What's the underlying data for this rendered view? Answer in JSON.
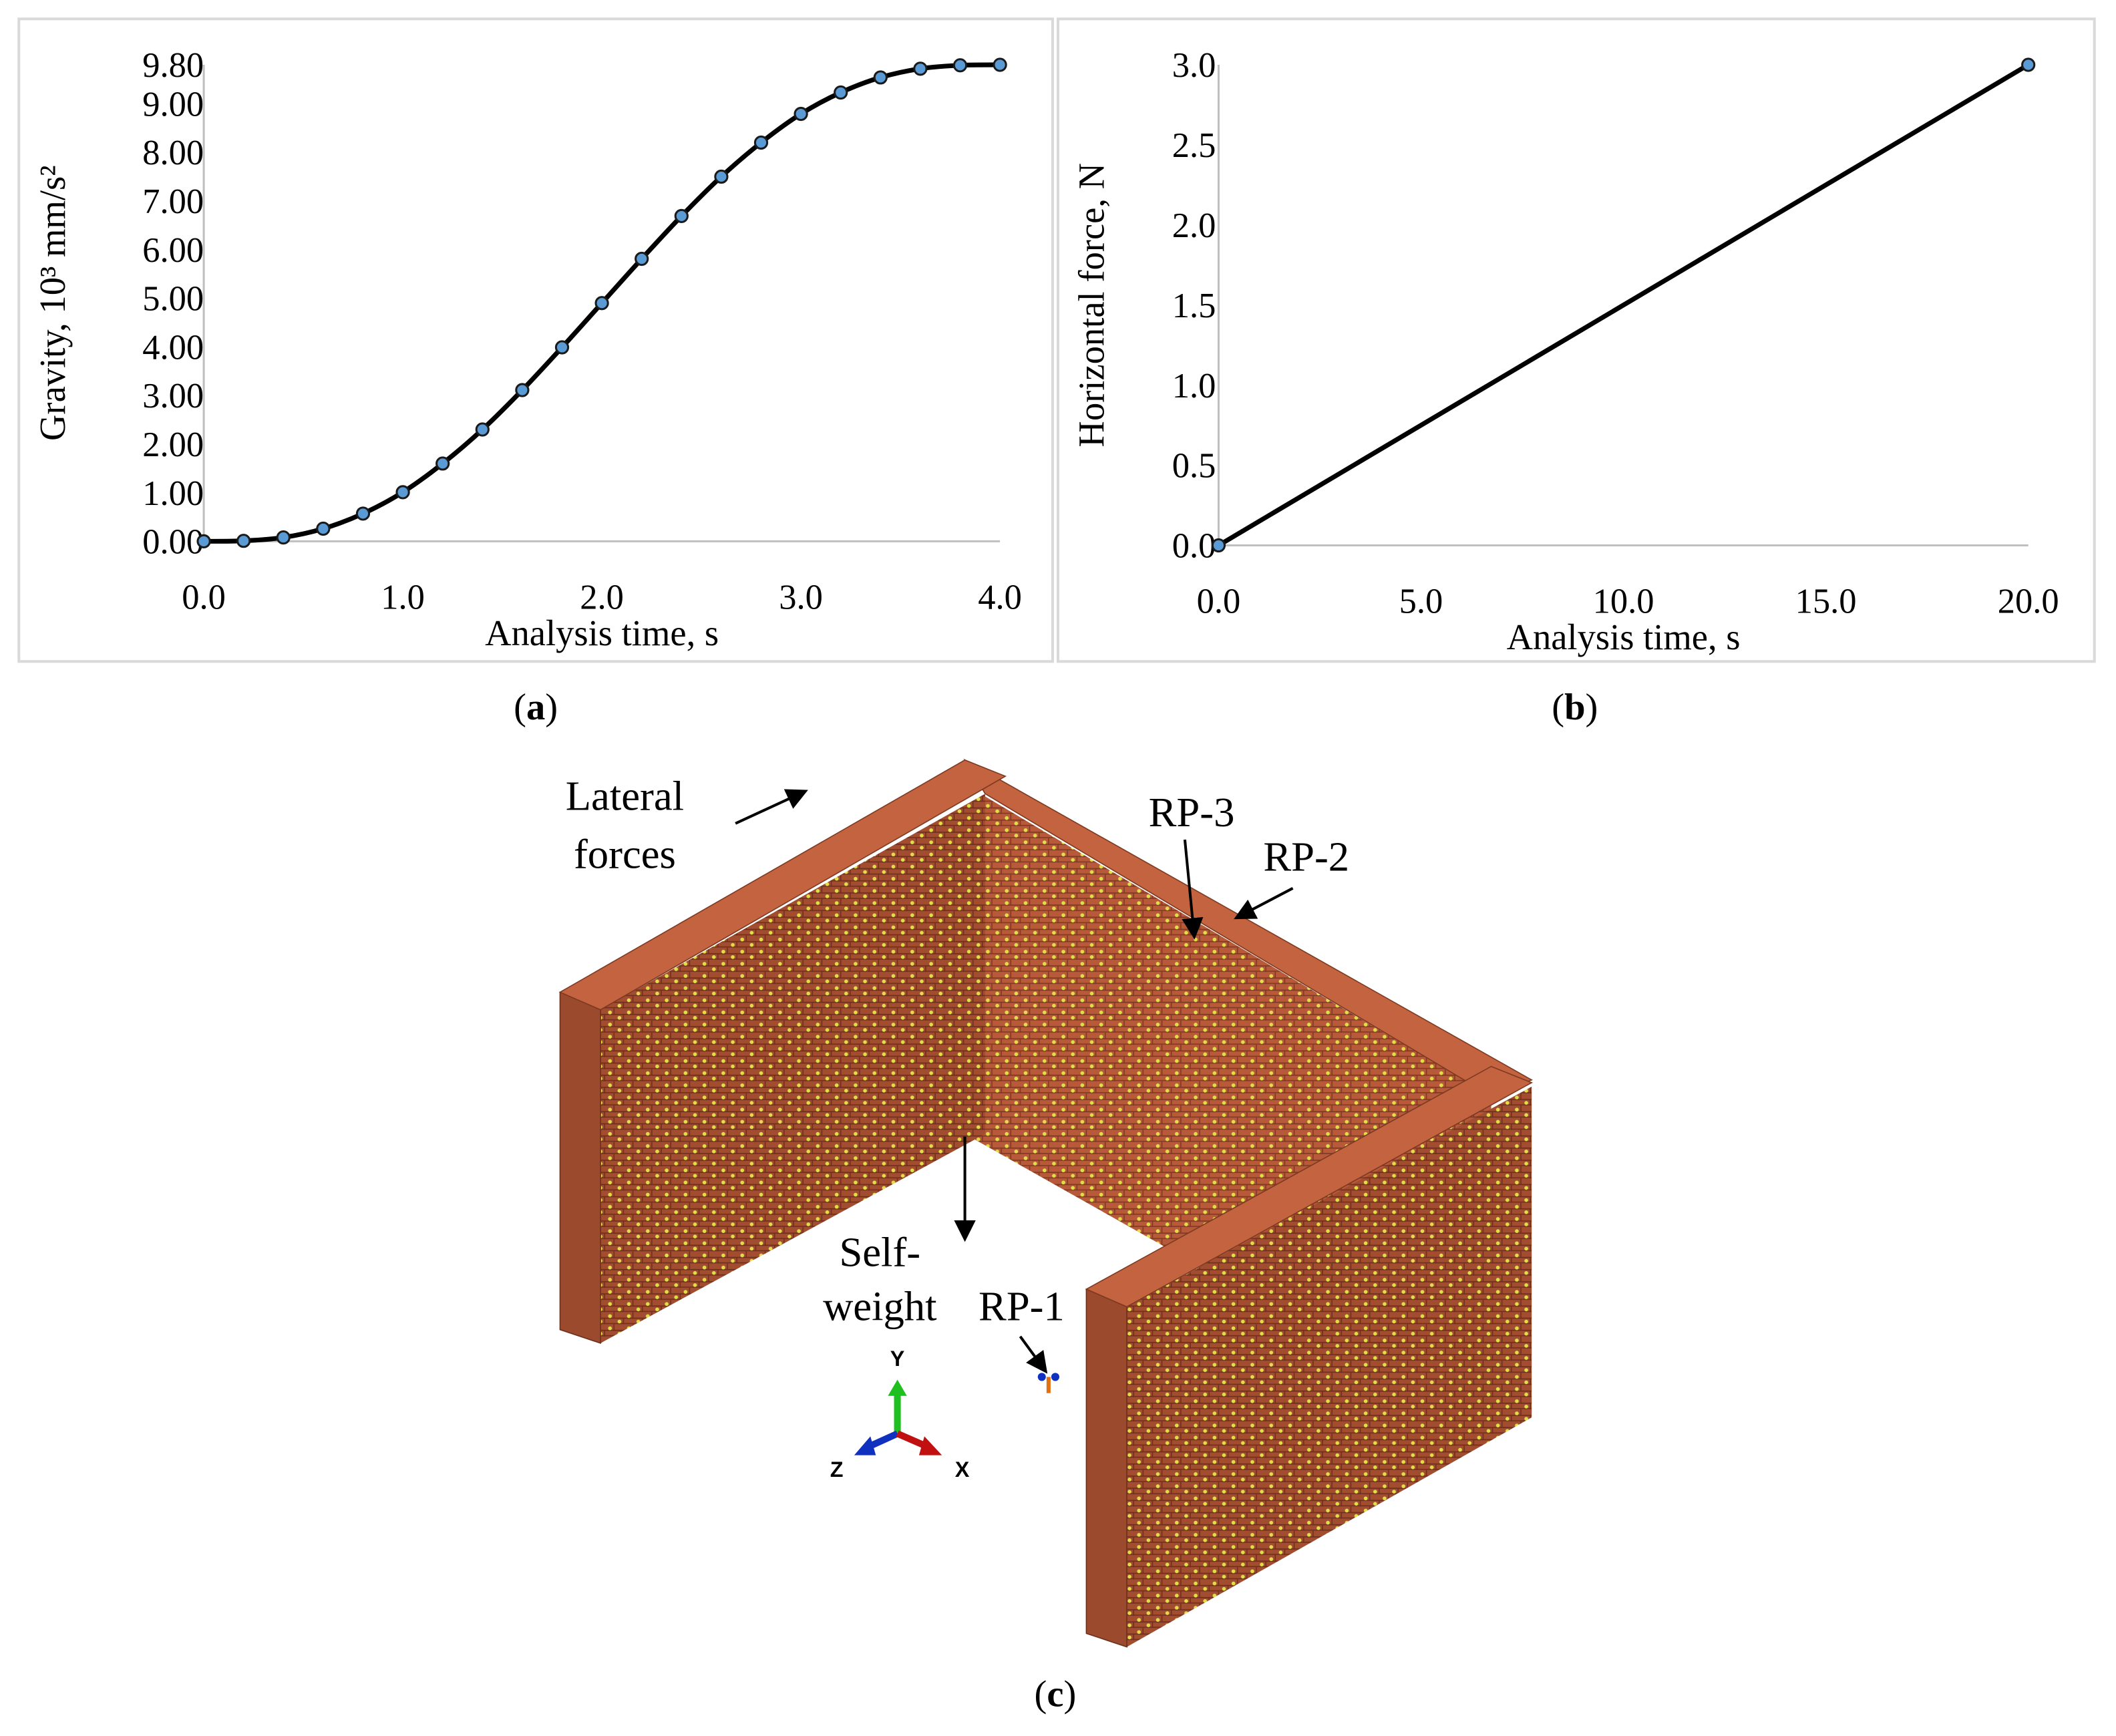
{
  "chart_data": [
    {
      "type": "line",
      "panel": "(a)",
      "xlabel": "Analysis time, s",
      "ylabel": "Gravity, 10³ mm/s²",
      "xlim": [
        0,
        4
      ],
      "ylim": [
        0,
        9.8
      ],
      "xticks": [
        "0.0",
        "1.0",
        "2.0",
        "3.0",
        "4.0"
      ],
      "xtick_values": [
        0,
        1,
        2,
        3,
        4
      ],
      "yticks": [
        "0.00",
        "1.00",
        "2.00",
        "3.00",
        "4.00",
        "5.00",
        "6.00",
        "7.00",
        "8.00",
        "9.00",
        "9.80"
      ],
      "ytick_values": [
        0,
        1,
        2,
        3,
        4,
        5,
        6,
        7,
        8,
        9,
        9.8
      ],
      "grid": false,
      "markers": true,
      "marker_color": "#5b9bd5",
      "line_color": "#000000",
      "x": [
        0,
        0.2,
        0.4,
        0.6,
        0.8,
        1.0,
        1.2,
        1.4,
        1.6,
        1.8,
        2.0,
        2.2,
        2.4,
        2.6,
        2.8,
        3.0,
        3.2,
        3.4,
        3.6,
        3.8,
        4.0
      ],
      "y": [
        0,
        0.01,
        0.08,
        0.26,
        0.57,
        1.01,
        1.6,
        2.3,
        3.11,
        3.99,
        4.9,
        5.81,
        6.69,
        7.5,
        8.2,
        8.79,
        9.23,
        9.54,
        9.72,
        9.79,
        9.8
      ]
    },
    {
      "type": "line",
      "panel": "(b)",
      "xlabel": "Analysis time, s",
      "ylabel": "Horizontal force, N",
      "xlim": [
        0,
        20
      ],
      "ylim": [
        0,
        3
      ],
      "xticks": [
        "0.0",
        "5.0",
        "10.0",
        "15.0",
        "20.0"
      ],
      "xtick_values": [
        0,
        5,
        10,
        15,
        20
      ],
      "yticks": [
        "0.0",
        "0.5",
        "1.0",
        "1.5",
        "2.0",
        "2.5",
        "3.0"
      ],
      "ytick_values": [
        0,
        0.5,
        1,
        1.5,
        2,
        2.5,
        3
      ],
      "grid": false,
      "markers": true,
      "marker_color": "#5b9bd5",
      "line_color": "#000000",
      "x": [
        0,
        20
      ],
      "y": [
        0,
        3
      ]
    }
  ],
  "diagram": {
    "panel": "(c)",
    "labels": {
      "lateral_1": "Lateral",
      "lateral_2": "forces",
      "rp3": "RP-3",
      "rp2": "RP-2",
      "self_1": "Self-",
      "self_2": "weight",
      "rp1": "RP-1"
    },
    "triad": {
      "y": "Y",
      "z": "Z",
      "x": "X"
    },
    "colors": {
      "brick": "#b85a3a",
      "brick_dark": "#8a3f26",
      "load_markers": "#e8e84a",
      "axis_y": "#1fbf1f",
      "axis_x": "#c01010",
      "axis_z": "#1030c0"
    }
  },
  "captions": {
    "a": "a",
    "b": "b",
    "c": "c"
  }
}
